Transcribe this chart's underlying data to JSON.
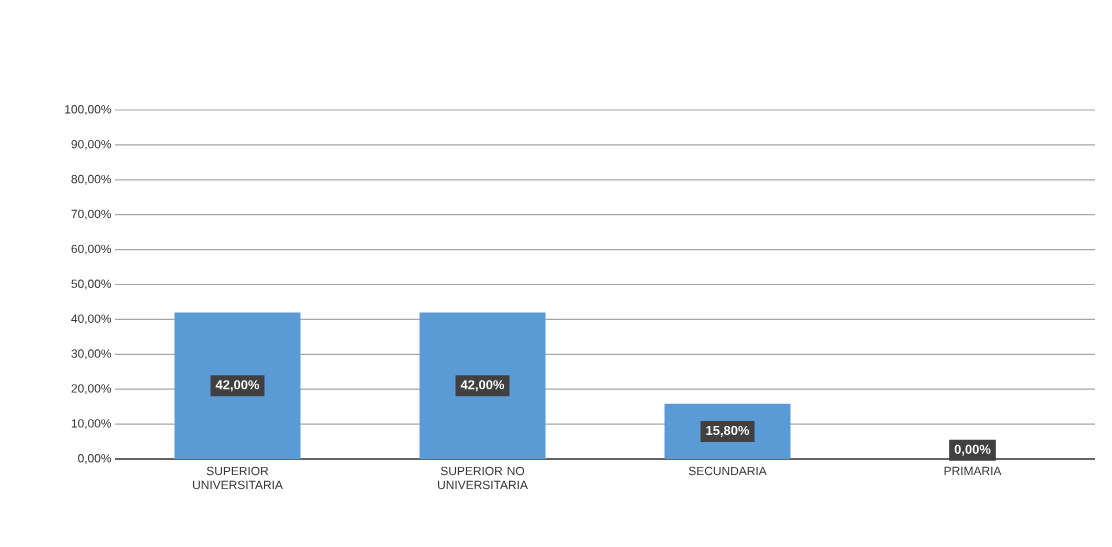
{
  "chart_data": {
    "type": "bar",
    "categories": [
      "SUPERIOR UNIVERSITARIA",
      "SUPERIOR NO UNIVERSITARIA",
      "SECUNDARIA",
      "PRIMARIA"
    ],
    "values": [
      42,
      42,
      15.8,
      0
    ],
    "value_labels": [
      "42,00%",
      "42,00%",
      "15,80%",
      "0,00%"
    ],
    "color": "#5b9bd5",
    "ylim": [
      0,
      100
    ],
    "yticks": [
      {
        "value": 0,
        "label": "0,00%"
      },
      {
        "value": 10,
        "label": "10,00%"
      },
      {
        "value": 20,
        "label": "20,00%"
      },
      {
        "value": 30,
        "label": "30,00%"
      },
      {
        "value": 40,
        "label": "40,00%"
      },
      {
        "value": 50,
        "label": "50,00%"
      },
      {
        "value": 60,
        "label": "60,00%"
      },
      {
        "value": 70,
        "label": "70,00%"
      },
      {
        "value": 80,
        "label": "80,00%"
      },
      {
        "value": 90,
        "label": "90,00%"
      },
      {
        "value": 100,
        "label": "100,00%"
      }
    ],
    "grid": "y"
  }
}
